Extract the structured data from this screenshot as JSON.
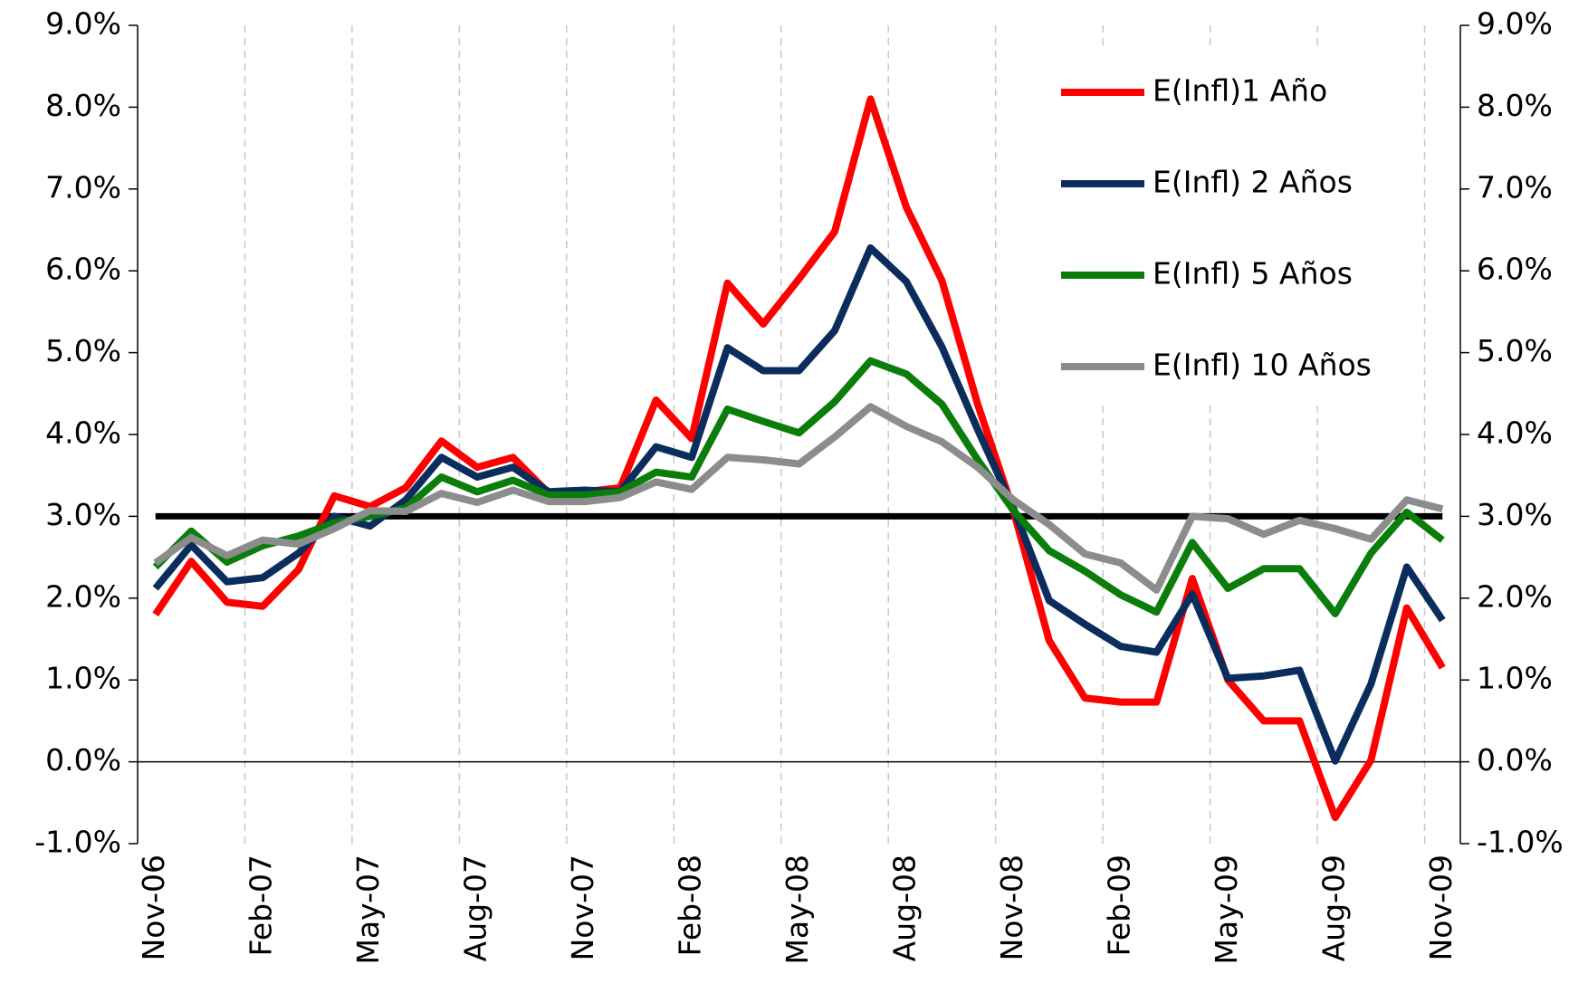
{
  "chart_data": {
    "type": "line",
    "categories": [
      "Nov-06",
      null,
      null,
      "Feb-07",
      null,
      null,
      "May-07",
      null,
      null,
      "Aug-07",
      null,
      null,
      "Nov-07",
      null,
      null,
      "Feb-08",
      null,
      null,
      "May-08",
      null,
      null,
      "Aug-08",
      null,
      null,
      "Nov-08",
      null,
      null,
      "Feb-09",
      null,
      null,
      "May-09",
      null,
      null,
      "Aug-09",
      null,
      null,
      "Nov-09"
    ],
    "series": [
      {
        "name": "E(Infl)1 Año",
        "color": "#ff0000",
        "values": [
          1.8,
          2.45,
          1.95,
          1.9,
          2.35,
          3.25,
          3.12,
          3.35,
          3.92,
          3.6,
          3.72,
          3.28,
          3.3,
          3.35,
          4.42,
          3.95,
          5.85,
          5.35,
          5.9,
          6.48,
          8.1,
          6.78,
          5.88,
          4.37,
          3.07,
          1.48,
          0.78,
          0.73,
          0.73,
          2.24,
          1.0,
          0.5,
          0.5,
          -0.68,
          0.02,
          1.88,
          1.15
        ]
      },
      {
        "name": "E(Infl) 2 Años",
        "color": "#0b2d5e",
        "values": [
          2.12,
          2.65,
          2.2,
          2.25,
          2.55,
          3.0,
          2.88,
          3.2,
          3.72,
          3.48,
          3.6,
          3.3,
          3.32,
          3.3,
          3.85,
          3.72,
          5.06,
          4.78,
          4.78,
          5.27,
          6.28,
          5.87,
          5.07,
          4.06,
          3.1,
          1.97,
          1.68,
          1.41,
          1.34,
          2.05,
          1.02,
          1.05,
          1.12,
          0.01,
          0.95,
          2.38,
          1.73
        ]
      },
      {
        "name": "E(Infl) 5 Años",
        "color": "#0a7d0a",
        "values": [
          2.38,
          2.82,
          2.44,
          2.64,
          2.76,
          2.92,
          3.0,
          3.1,
          3.48,
          3.3,
          3.44,
          3.26,
          3.26,
          3.3,
          3.54,
          3.48,
          4.31,
          4.16,
          4.02,
          4.4,
          4.9,
          4.74,
          4.37,
          3.69,
          3.07,
          2.58,
          2.33,
          2.04,
          1.83,
          2.68,
          2.12,
          2.36,
          2.36,
          1.81,
          2.55,
          3.05,
          2.71
        ]
      },
      {
        "name": "E(Infl) 10 Años",
        "color": "#8c8c8c",
        "values": [
          2.43,
          2.74,
          2.52,
          2.71,
          2.66,
          2.85,
          3.07,
          3.06,
          3.28,
          3.17,
          3.32,
          3.18,
          3.18,
          3.23,
          3.42,
          3.33,
          3.72,
          3.69,
          3.64,
          3.97,
          4.34,
          4.1,
          3.91,
          3.6,
          3.2,
          2.9,
          2.54,
          2.43,
          2.1,
          3.0,
          2.97,
          2.78,
          2.95,
          2.85,
          2.72,
          3.2,
          3.09
        ]
      }
    ],
    "hline": 3,
    "hline_color": "#000000",
    "ylim": [
      -1,
      9
    ],
    "yticks": [
      {
        "value": -1,
        "label": "-1.0%"
      },
      {
        "value": 0,
        "label": "0.0%"
      },
      {
        "value": 1,
        "label": "1.0%"
      },
      {
        "value": 2,
        "label": "2.0%"
      },
      {
        "value": 3,
        "label": "3.0%"
      },
      {
        "value": 4,
        "label": "4.0%"
      },
      {
        "value": 5,
        "label": "5.0%"
      },
      {
        "value": 6,
        "label": "6.0%"
      },
      {
        "value": 7,
        "label": "7.0%"
      },
      {
        "value": 8,
        "label": "8.0%"
      },
      {
        "value": 9,
        "label": "9.0%"
      }
    ],
    "y2lim": [
      -1,
      9
    ],
    "y2ticks": [
      {
        "value": -1,
        "label": "-1.0%"
      },
      {
        "value": 0,
        "label": "0.0%"
      },
      {
        "value": 1,
        "label": "1.0%"
      },
      {
        "value": 2,
        "label": "2.0%"
      },
      {
        "value": 3,
        "label": "3.0%"
      },
      {
        "value": 4,
        "label": "4.0%"
      },
      {
        "value": 5,
        "label": "5.0%"
      },
      {
        "value": 6,
        "label": "6.0%"
      },
      {
        "value": 7,
        "label": "7.0%"
      },
      {
        "value": 8,
        "label": "8.0%"
      },
      {
        "value": 9,
        "label": "9.0%"
      }
    ],
    "legend": "upper right",
    "grid": "x"
  }
}
